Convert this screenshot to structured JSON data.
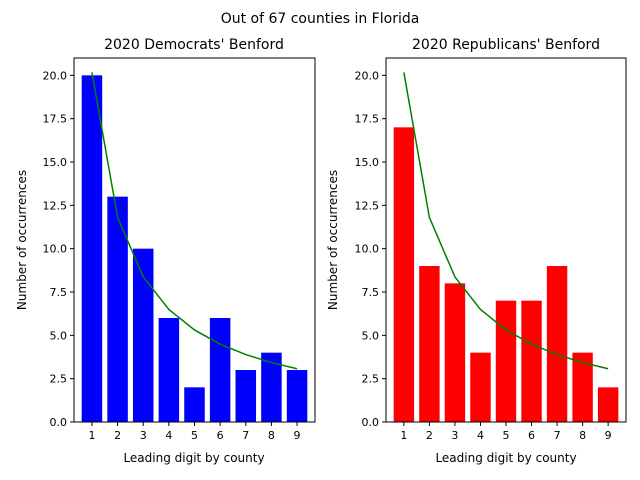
{
  "figure": {
    "suptitle": "Out of 67 counties in Florida"
  },
  "chart_data": [
    {
      "type": "bar",
      "title": "2020 Democrats' Benford",
      "xlabel": "Leading digit by county",
      "ylabel": "Number of occurrences",
      "categories": [
        "1",
        "2",
        "3",
        "4",
        "5",
        "6",
        "7",
        "8",
        "9"
      ],
      "values": [
        20,
        13,
        10,
        6,
        2,
        6,
        3,
        4,
        3
      ],
      "bar_color": "#0000ff",
      "expected_line": {
        "color": "#008000",
        "values": [
          20.17,
          11.8,
          8.37,
          6.49,
          5.31,
          4.49,
          3.89,
          3.43,
          3.07
        ]
      },
      "ylim": [
        0,
        21
      ],
      "yticks": [
        0.0,
        2.5,
        5.0,
        7.5,
        10.0,
        12.5,
        15.0,
        17.5,
        20.0
      ],
      "ytick_labels": [
        "0.0",
        "2.5",
        "5.0",
        "7.5",
        "10.0",
        "12.5",
        "15.0",
        "17.5",
        "20.0"
      ],
      "grid": false
    },
    {
      "type": "bar",
      "title": "2020 Republicans' Benford",
      "xlabel": "Leading digit by county",
      "ylabel": "Number of occurrences",
      "categories": [
        "1",
        "2",
        "3",
        "4",
        "5",
        "6",
        "7",
        "8",
        "9"
      ],
      "values": [
        17,
        9,
        8,
        4,
        7,
        7,
        9,
        4,
        2
      ],
      "bar_color": "#ff0000",
      "expected_line": {
        "color": "#008000",
        "values": [
          20.17,
          11.8,
          8.37,
          6.49,
          5.31,
          4.49,
          3.89,
          3.43,
          3.07
        ]
      },
      "ylim": [
        0,
        21
      ],
      "yticks": [
        0.0,
        2.5,
        5.0,
        7.5,
        10.0,
        12.5,
        15.0,
        17.5,
        20.0
      ],
      "ytick_labels": [
        "0.0",
        "2.5",
        "5.0",
        "7.5",
        "10.0",
        "12.5",
        "15.0",
        "17.5",
        "20.0"
      ],
      "grid": false
    }
  ]
}
